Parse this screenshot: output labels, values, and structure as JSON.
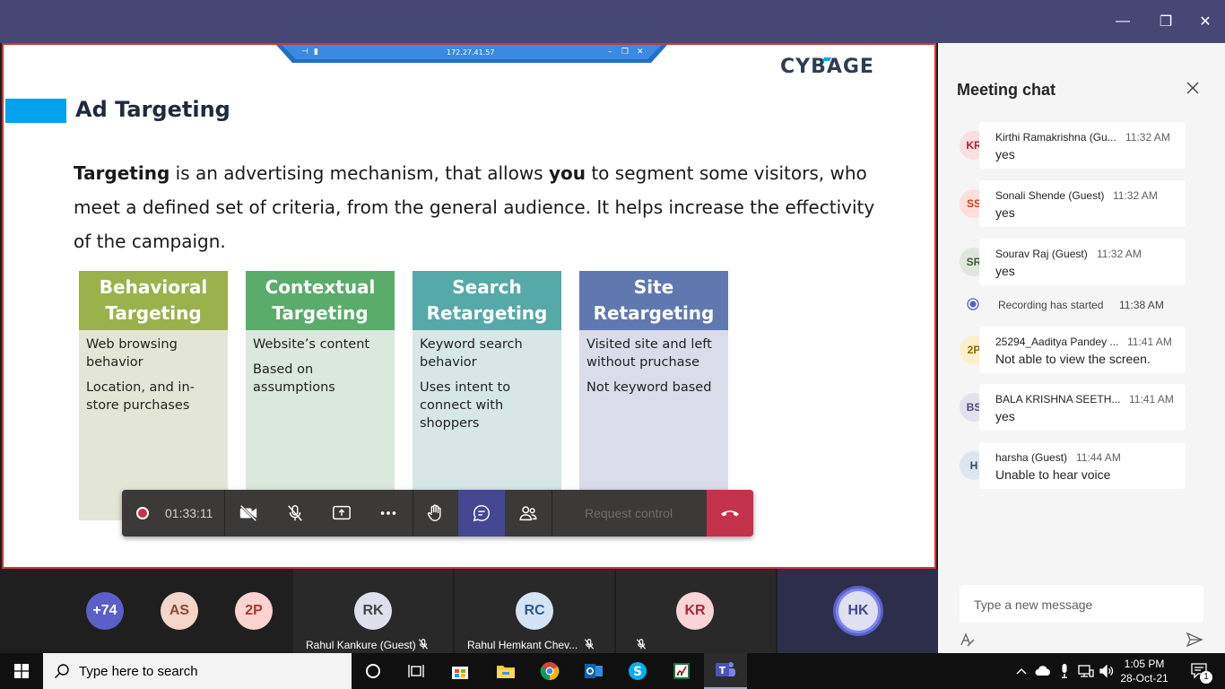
{
  "window": {
    "minimize_glyph": "—",
    "maximize_glyph": "❐",
    "close_glyph": "✕"
  },
  "remote_session": {
    "ip": "172.27.41.57"
  },
  "slide": {
    "logo": "CYBAGE",
    "title": "Ad Targeting",
    "body_part1": "Targeting",
    "body_part2": " is an advertising mechanism, that allows ",
    "body_part3": "you",
    "body_part4": " to segment some visitors, who meet a defined set of criteria, from the general audience. It helps increase the effectivity of the campaign.",
    "cards": [
      {
        "title": "Behavioral Targeting",
        "head_color": "#9bb24c",
        "body_color": "#e3e6d6",
        "points": [
          "Web browsing behavior",
          "Location, and in-store purchases"
        ]
      },
      {
        "title": "Contextual Targeting",
        "head_color": "#5aac6a",
        "body_color": "#dae8dd",
        "points": [
          "Website’s content",
          "Based on assumptions"
        ]
      },
      {
        "title": "Search Retargeting",
        "head_color": "#55aaa8",
        "body_color": "#d7e7e8",
        "points": [
          "Keyword search behavior",
          "Uses intent to connect with shoppers"
        ]
      },
      {
        "title": "Site Retargeting",
        "head_color": "#5f79b0",
        "body_color": "#dadde9",
        "points": [
          "Visited site and left without pruchase",
          "Not keyword based"
        ]
      }
    ]
  },
  "call_controls": {
    "timer": "01:33:11",
    "request_control": "Request control",
    "icons": [
      "camera-off-icon",
      "mic-off-icon",
      "share-screen-icon",
      "more-icon",
      "raise-hand-icon",
      "chat-icon",
      "participants-icon",
      "hang-up-icon"
    ]
  },
  "participants": [
    {
      "initials": "+74",
      "bg": "#5b5fc7",
      "fg": "#ffffff"
    },
    {
      "initials": "AS",
      "bg": "#f3d6c9",
      "fg": "#8a4a33"
    },
    {
      "initials": "2P",
      "bg": "#fbd4cf",
      "fg": "#a33b2e"
    },
    {
      "initials": "RK",
      "bg": "#dfe0ec",
      "fg": "#444",
      "name": "Rahul Kankure (Guest)"
    },
    {
      "initials": "RC",
      "bg": "#d5e4f5",
      "fg": "#2b5a8a",
      "name": "Rahul Hemkant Chev..."
    },
    {
      "initials": "KR",
      "bg": "#fbd4d8",
      "fg": "#a32b3a"
    },
    {
      "initials": "HK",
      "bg": "#dfe0f0",
      "fg": "#444791"
    }
  ],
  "chat": {
    "title": "Meeting chat",
    "messages": [
      {
        "initials": "KR",
        "avatar_bg": "#fbdde2",
        "avatar_fg": "#a4262c",
        "name": "Kirthi Ramakrishna (Gu...",
        "time": "11:32 AM",
        "text": "yes"
      },
      {
        "initials": "SS",
        "avatar_bg": "#fde0dc",
        "avatar_fg": "#c43e1c",
        "name": "Sonali Shende (Guest)",
        "time": "11:32 AM",
        "text": "yes"
      },
      {
        "initials": "SR",
        "avatar_bg": "#dfe6dd",
        "avatar_fg": "#3f5b39",
        "name": "Sourav Raj (Guest)",
        "time": "11:32 AM",
        "text": "yes"
      },
      {
        "initials": "2P",
        "avatar_bg": "#fdf0c8",
        "avatar_fg": "#8a6a00",
        "name": "25294_Aaditya Pandey ...",
        "time": "11:41 AM",
        "text": "Not able to view the screen."
      },
      {
        "initials": "BS",
        "avatar_bg": "#e4e1ef",
        "avatar_fg": "#4f4a78",
        "name": "BALA KRISHNA SEETH...",
        "time": "11:41 AM",
        "text": "yes"
      },
      {
        "initials": "H",
        "avatar_bg": "#dde6ee",
        "avatar_fg": "#2f4b66",
        "name": "harsha (Guest)",
        "time": "11:44 AM",
        "text": "Unable to hear voice"
      }
    ],
    "system_event": {
      "text": "Recording has started",
      "time": "11:38 AM"
    },
    "compose_placeholder": "Type a new message"
  },
  "taskbar": {
    "search_placeholder": "Type here to search",
    "apps": [
      "cortana-icon",
      "task-view-icon",
      "store-icon",
      "file-explorer-icon",
      "chrome-icon",
      "outlook-icon",
      "skype-icon",
      "excel-icon",
      "teams-icon"
    ],
    "time": "1:05 PM",
    "date": "28-Oct-21",
    "notification_count": "1"
  }
}
